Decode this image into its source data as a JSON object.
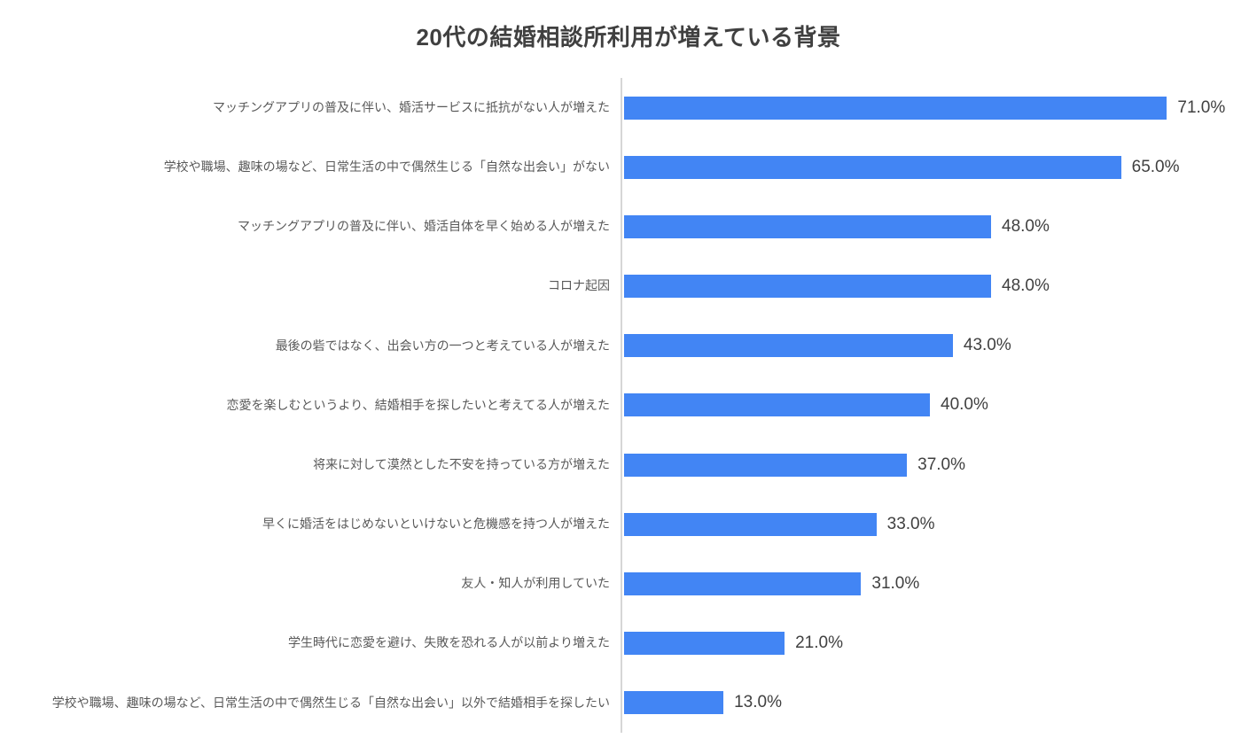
{
  "chart_data": {
    "type": "bar",
    "orientation": "horizontal",
    "title": "20代の結婚相談所利用が増えている背景",
    "categories": [
      "マッチングアプリの普及に伴い、婚活サービスに抵抗がない人が増えた",
      "学校や職場、趣味の場など、日常生活の中で偶然生じる「自然な出会い」がない",
      "マッチングアプリの普及に伴い、婚活自体を早く始める人が増えた",
      "コロナ起因",
      "最後の砦ではなく、出会い方の一つと考えている人が増えた",
      "恋愛を楽しむというより、結婚相手を探したいと考えてる人が増えた",
      "将来に対して漠然とした不安を持っている方が増えた",
      "早くに婚活をはじめないといけないと危機感を持つ人が増えた",
      "友人・知人が利用していた",
      "学生時代に恋愛を避け、失敗を恐れる人が以前より増えた",
      "学校や職場、趣味の場など、日常生活の中で偶然生じる「自然な出会い」以外で結婚相手を探したい"
    ],
    "values": [
      71.0,
      65.0,
      48.0,
      48.0,
      43.0,
      40.0,
      37.0,
      33.0,
      31.0,
      21.0,
      13.0
    ],
    "value_labels": [
      "71.0%",
      "65.0%",
      "48.0%",
      "48.0%",
      "43.0%",
      "40.0%",
      "37.0%",
      "33.0%",
      "31.0%",
      "21.0%",
      "13.0%"
    ],
    "xlabel": "",
    "ylabel": "",
    "xlim": [
      0,
      80
    ],
    "grid": false,
    "legend_position": "none",
    "colors": {
      "bar": "#4285f4",
      "axis_line": "#d6d6d6",
      "title": "#404040",
      "category_label": "#595959",
      "value_label": "#404040",
      "background": "#ffffff"
    }
  }
}
